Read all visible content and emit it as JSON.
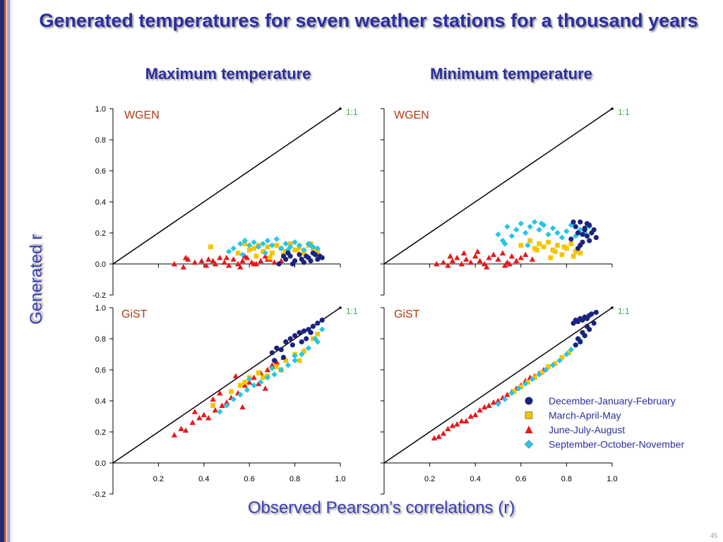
{
  "title": "Generated temperatures for seven weather stations for a thousand years",
  "column_titles": [
    "Maximum temperature",
    "Minimum temperature"
  ],
  "ylabel": "Generated r",
  "xlabel": "Observed Pearson’s correlations (r)",
  "page_number": "45",
  "one_to_one_label": "1:1",
  "colors": {
    "title": "#2b2f9e",
    "djf": "#1a237e",
    "mam": "#f5c400",
    "jja": "#e31a1c",
    "son": "#29c5e6",
    "panel_label": "#b23a12",
    "one_to_one": "#2bb54a"
  },
  "legend": [
    {
      "label": "December-January-February",
      "marker": "circle",
      "color": "#1a237e"
    },
    {
      "label": "March-April-May",
      "marker": "square",
      "color": "#f5c400"
    },
    {
      "label": "June-July-August",
      "marker": "triangle",
      "color": "#e31a1c"
    },
    {
      "label": "September-October-November",
      "marker": "diamond",
      "color": "#29c5e6"
    }
  ],
  "chart_data": [
    {
      "type": "scatter",
      "panel_label": "WGEN",
      "column": "Maximum temperature",
      "xlim": [
        0.0,
        1.0
      ],
      "ylim": [
        -0.2,
        1.0
      ],
      "xticks": [],
      "yticks": [
        "1.0",
        "0.8",
        "0.6",
        "0.4",
        "0.2",
        "0.0",
        "-0.2"
      ],
      "series": [
        {
          "season": "December-January-February",
          "x": [
            0.73,
            0.76,
            0.78,
            0.8,
            0.82,
            0.84,
            0.86,
            0.88,
            0.9,
            0.91,
            0.75,
            0.79,
            0.83,
            0.87,
            0.89,
            0.92,
            0.77,
            0.85
          ],
          "y": [
            0.0,
            0.03,
            0.05,
            0.02,
            0.06,
            0.01,
            0.04,
            0.07,
            0.03,
            0.05,
            0.05,
            0.0,
            0.03,
            0.02,
            0.06,
            0.04,
            0.07,
            0.05
          ]
        },
        {
          "season": "March-April-May",
          "x": [
            0.43,
            0.55,
            0.58,
            0.6,
            0.62,
            0.64,
            0.66,
            0.68,
            0.7,
            0.72,
            0.74,
            0.76,
            0.78,
            0.8,
            0.82,
            0.84,
            0.86,
            0.88,
            0.9,
            0.63,
            0.69,
            0.75,
            0.81,
            0.87
          ],
          "y": [
            0.11,
            0.07,
            0.13,
            0.09,
            0.1,
            0.12,
            0.08,
            0.11,
            0.07,
            0.12,
            0.1,
            0.08,
            0.13,
            0.09,
            0.11,
            0.07,
            0.12,
            0.1,
            0.08,
            0.05,
            0.04,
            0.06,
            0.09,
            0.13
          ]
        },
        {
          "season": "June-July-August",
          "x": [
            0.27,
            0.31,
            0.33,
            0.36,
            0.39,
            0.42,
            0.45,
            0.47,
            0.49,
            0.51,
            0.53,
            0.55,
            0.57,
            0.59,
            0.61,
            0.63,
            0.65,
            0.67,
            0.69,
            0.71,
            0.44,
            0.5,
            0.56,
            0.62,
            0.68,
            0.74,
            0.32,
            0.41,
            0.58
          ],
          "y": [
            0.0,
            -0.02,
            0.03,
            0.01,
            0.02,
            0.03,
            0.0,
            0.04,
            0.01,
            -0.01,
            0.03,
            0.0,
            0.02,
            0.04,
            0.01,
            0.0,
            0.02,
            0.05,
            0.03,
            0.01,
            0.02,
            0.04,
            -0.02,
            0.0,
            0.03,
            0.02,
            0.04,
            -0.01,
            0.05
          ]
        },
        {
          "season": "September-October-November",
          "x": [
            0.51,
            0.53,
            0.56,
            0.58,
            0.6,
            0.62,
            0.64,
            0.66,
            0.68,
            0.7,
            0.72,
            0.74,
            0.76,
            0.78,
            0.8,
            0.82,
            0.84,
            0.86,
            0.88,
            0.9,
            0.57,
            0.67,
            0.77,
            0.87
          ],
          "y": [
            0.08,
            0.1,
            0.13,
            0.15,
            0.12,
            0.14,
            0.11,
            0.13,
            0.15,
            0.12,
            0.16,
            0.1,
            0.13,
            0.11,
            0.14,
            0.12,
            0.09,
            0.13,
            0.11,
            0.1,
            0.06,
            0.07,
            0.09,
            0.12
          ]
        }
      ]
    },
    {
      "type": "scatter",
      "panel_label": "WGEN",
      "column": "Minimum temperature",
      "xlim": [
        0.0,
        1.0
      ],
      "ylim": [
        -0.2,
        1.0
      ],
      "xticks": [],
      "yticks": [],
      "series": [
        {
          "season": "December-January-February",
          "x": [
            0.82,
            0.84,
            0.85,
            0.86,
            0.87,
            0.88,
            0.89,
            0.9,
            0.91,
            0.93,
            0.83,
            0.86,
            0.88,
            0.9,
            0.85,
            0.87,
            0.89,
            0.92
          ],
          "y": [
            0.16,
            0.24,
            0.2,
            0.27,
            0.14,
            0.22,
            0.18,
            0.25,
            0.2,
            0.17,
            0.27,
            0.12,
            0.23,
            0.15,
            0.1,
            0.19,
            0.26,
            0.22
          ]
        },
        {
          "season": "March-April-May",
          "x": [
            0.6,
            0.64,
            0.66,
            0.68,
            0.7,
            0.72,
            0.74,
            0.76,
            0.78,
            0.8,
            0.82,
            0.84,
            0.86,
            0.73,
            0.79,
            0.83,
            0.67,
            0.75
          ],
          "y": [
            0.12,
            0.15,
            0.1,
            0.13,
            0.11,
            0.14,
            0.09,
            0.12,
            0.06,
            0.1,
            0.13,
            0.08,
            0.07,
            0.04,
            0.11,
            0.05,
            0.09,
            0.08
          ]
        },
        {
          "season": "June-July-August",
          "x": [
            0.23,
            0.26,
            0.28,
            0.3,
            0.32,
            0.34,
            0.36,
            0.38,
            0.4,
            0.42,
            0.44,
            0.46,
            0.48,
            0.5,
            0.52,
            0.54,
            0.56,
            0.58,
            0.6,
            0.62,
            0.35,
            0.45,
            0.55,
            0.65,
            0.29,
            0.41,
            0.53
          ],
          "y": [
            0.0,
            0.01,
            -0.01,
            0.02,
            0.04,
            0.0,
            0.03,
            0.01,
            0.05,
            0.02,
            0.0,
            0.04,
            0.06,
            0.03,
            0.07,
            0.01,
            0.05,
            0.02,
            0.04,
            0.06,
            0.07,
            -0.02,
            0.0,
            0.03,
            0.05,
            0.08,
            -0.01
          ]
        },
        {
          "season": "September-October-November",
          "x": [
            0.5,
            0.52,
            0.54,
            0.56,
            0.58,
            0.6,
            0.62,
            0.64,
            0.66,
            0.68,
            0.7,
            0.72,
            0.74,
            0.76,
            0.78,
            0.8,
            0.82,
            0.84,
            0.86,
            0.88,
            0.9,
            0.53,
            0.63,
            0.69
          ],
          "y": [
            0.19,
            0.15,
            0.24,
            0.18,
            0.22,
            0.26,
            0.2,
            0.24,
            0.27,
            0.22,
            0.25,
            0.19,
            0.23,
            0.2,
            0.17,
            0.21,
            0.25,
            0.18,
            0.22,
            0.2,
            0.24,
            0.13,
            0.12,
            0.26
          ]
        }
      ]
    },
    {
      "type": "scatter",
      "panel_label": "GiST",
      "column": "Maximum temperature",
      "xlim": [
        0.0,
        1.0
      ],
      "ylim": [
        -0.2,
        1.0
      ],
      "xticks": [
        "0.2",
        "0.4",
        "0.6",
        "0.8",
        "1.0"
      ],
      "yticks": [
        "1.0",
        "0.8",
        "0.6",
        "0.4",
        "0.2",
        "0.0",
        "-0.2"
      ],
      "series": [
        {
          "season": "December-January-February",
          "x": [
            0.7,
            0.72,
            0.74,
            0.76,
            0.78,
            0.8,
            0.82,
            0.84,
            0.86,
            0.88,
            0.9,
            0.92,
            0.75,
            0.79,
            0.83,
            0.87,
            0.71,
            0.85
          ],
          "y": [
            0.71,
            0.74,
            0.73,
            0.78,
            0.8,
            0.82,
            0.84,
            0.85,
            0.86,
            0.88,
            0.9,
            0.92,
            0.68,
            0.76,
            0.78,
            0.84,
            0.66,
            0.8
          ]
        },
        {
          "season": "March-April-May",
          "x": [
            0.44,
            0.52,
            0.56,
            0.6,
            0.64,
            0.68,
            0.72,
            0.76,
            0.8,
            0.84,
            0.88,
            0.9,
            0.58,
            0.66,
            0.74,
            0.82
          ],
          "y": [
            0.37,
            0.46,
            0.5,
            0.55,
            0.58,
            0.56,
            0.62,
            0.66,
            0.7,
            0.72,
            0.8,
            0.83,
            0.52,
            0.55,
            0.6,
            0.66
          ]
        },
        {
          "season": "June-July-August",
          "x": [
            0.27,
            0.3,
            0.32,
            0.35,
            0.38,
            0.4,
            0.42,
            0.45,
            0.48,
            0.5,
            0.52,
            0.55,
            0.58,
            0.6,
            0.62,
            0.65,
            0.68,
            0.7,
            0.72,
            0.75,
            0.36,
            0.44,
            0.54,
            0.64,
            0.74,
            0.47,
            0.57,
            0.67
          ],
          "y": [
            0.18,
            0.22,
            0.21,
            0.26,
            0.29,
            0.31,
            0.29,
            0.34,
            0.37,
            0.39,
            0.42,
            0.45,
            0.5,
            0.52,
            0.55,
            0.58,
            0.6,
            0.63,
            0.65,
            0.68,
            0.33,
            0.41,
            0.56,
            0.51,
            0.6,
            0.45,
            0.36,
            0.48
          ]
        },
        {
          "season": "September-October-November",
          "x": [
            0.47,
            0.5,
            0.53,
            0.56,
            0.59,
            0.62,
            0.65,
            0.68,
            0.71,
            0.74,
            0.77,
            0.8,
            0.83,
            0.86,
            0.89,
            0.92,
            0.6,
            0.7,
            0.8,
            0.9
          ],
          "y": [
            0.33,
            0.37,
            0.41,
            0.44,
            0.47,
            0.5,
            0.52,
            0.55,
            0.57,
            0.6,
            0.63,
            0.66,
            0.7,
            0.74,
            0.8,
            0.86,
            0.54,
            0.61,
            0.69,
            0.78
          ]
        }
      ]
    },
    {
      "type": "scatter",
      "panel_label": "GiST",
      "column": "Minimum temperature",
      "xlim": [
        0.0,
        1.0
      ],
      "ylim": [
        -0.2,
        1.0
      ],
      "xticks": [
        "0.2",
        "0.4",
        "0.6",
        "0.8",
        "1.0"
      ],
      "yticks": [],
      "series": [
        {
          "season": "December-January-February",
          "x": [
            0.83,
            0.84,
            0.85,
            0.86,
            0.87,
            0.88,
            0.89,
            0.9,
            0.91,
            0.93,
            0.85,
            0.87,
            0.89,
            0.92,
            0.86,
            0.88,
            0.9,
            0.84
          ],
          "y": [
            0.9,
            0.92,
            0.91,
            0.93,
            0.92,
            0.94,
            0.93,
            0.95,
            0.96,
            0.97,
            0.8,
            0.84,
            0.88,
            0.9,
            0.78,
            0.82,
            0.86,
            0.76
          ]
        },
        {
          "season": "March-April-May",
          "x": [
            0.57,
            0.6,
            0.63,
            0.66,
            0.69,
            0.72,
            0.75,
            0.78,
            0.81
          ],
          "y": [
            0.46,
            0.49,
            0.52,
            0.55,
            0.58,
            0.62,
            0.64,
            0.68,
            0.71
          ]
        },
        {
          "season": "June-July-August",
          "x": [
            0.22,
            0.24,
            0.26,
            0.28,
            0.3,
            0.32,
            0.34,
            0.36,
            0.38,
            0.4,
            0.42,
            0.44,
            0.46,
            0.48,
            0.5,
            0.52,
            0.54,
            0.56,
            0.58,
            0.6,
            0.62,
            0.64,
            0.66,
            0.68,
            0.7
          ],
          "y": [
            0.16,
            0.17,
            0.19,
            0.22,
            0.24,
            0.25,
            0.27,
            0.27,
            0.3,
            0.31,
            0.34,
            0.36,
            0.37,
            0.39,
            0.4,
            0.42,
            0.44,
            0.46,
            0.48,
            0.5,
            0.53,
            0.55,
            0.56,
            0.58,
            0.6
          ]
        },
        {
          "season": "September-October-November",
          "x": [
            0.5,
            0.53,
            0.56,
            0.59,
            0.62,
            0.65,
            0.68,
            0.71,
            0.74,
            0.77,
            0.8,
            0.82,
            0.84,
            0.86,
            0.88
          ],
          "y": [
            0.38,
            0.41,
            0.45,
            0.48,
            0.51,
            0.54,
            0.57,
            0.6,
            0.63,
            0.66,
            0.7,
            0.73,
            0.76,
            0.79,
            0.82
          ]
        }
      ]
    }
  ]
}
